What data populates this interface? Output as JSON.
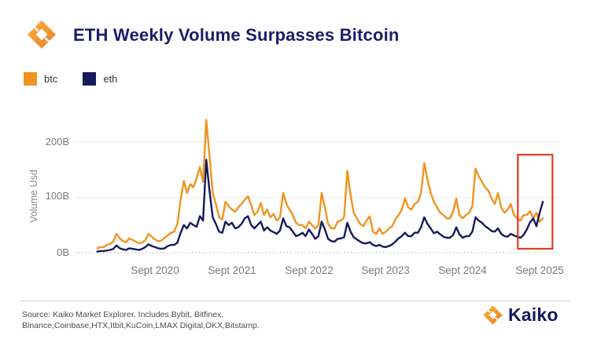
{
  "header": {
    "title": "ETH Weekly Volume Surpasses Bitcoin"
  },
  "legend": {
    "items": [
      {
        "label": "btc",
        "color": "#F0941F"
      },
      {
        "label": "eth",
        "color": "#141A5A"
      }
    ]
  },
  "chart_data": {
    "type": "line",
    "title": "ETH Weekly Volume Surpasses Bitcoin",
    "ylabel": "Volume Usd",
    "unit": "billions USD, weekly volume",
    "ylim": [
      0,
      250
    ],
    "yticklabels": [
      "200B",
      "100B",
      "0B"
    ],
    "ytick_values": [
      200,
      100,
      0
    ],
    "xticklabels": [
      "Sept 2020",
      "Sept 2021",
      "Sept 2022",
      "Sept 2023",
      "Sept 2024",
      "Sept 2025"
    ],
    "xtick_months_since_jan2020": [
      8,
      20,
      32,
      44,
      56,
      68
    ],
    "x_start_month_since_jan2020": -1,
    "x_step_months": 0.5,
    "grid": "horizontal, zero-line dotted",
    "legend_position": "top-left above plot",
    "annotation": {
      "type": "highlight-box",
      "color": "#E23B22",
      "note": "red box around mid-2025 where eth line crosses above btc",
      "x_start_month": 64.6,
      "x_end_month": 70.0,
      "y_min": 7,
      "y_max": 177
    },
    "series": [
      {
        "name": "btc",
        "color": "#F0941F",
        "values": [
          8,
          10,
          10,
          14,
          16,
          20,
          34,
          26,
          21,
          19,
          26,
          23,
          20,
          17,
          18,
          23,
          34,
          29,
          24,
          21,
          22,
          27,
          31,
          36,
          38,
          52,
          95,
          130,
          108,
          124,
          118,
          135,
          155,
          128,
          240,
          175,
          108,
          88,
          64,
          60,
          92,
          84,
          78,
          74,
          82,
          88,
          96,
          102,
          86,
          68,
          74,
          90,
          68,
          78,
          64,
          70,
          58,
          64,
          108,
          88,
          78,
          68,
          54,
          50,
          50,
          44,
          56,
          50,
          44,
          50,
          108,
          82,
          52,
          44,
          44,
          56,
          58,
          64,
          148,
          105,
          72,
          62,
          52,
          48,
          58,
          66,
          38,
          34,
          44,
          34,
          38,
          44,
          48,
          60,
          68,
          78,
          98,
          82,
          78,
          88,
          92,
          108,
          162,
          132,
          108,
          92,
          82,
          72,
          68,
          62,
          62,
          74,
          98,
          68,
          62,
          68,
          72,
          84,
          152,
          138,
          128,
          118,
          112,
          98,
          88,
          108,
          82,
          72,
          78,
          88,
          68,
          62,
          58,
          68,
          68,
          75,
          62,
          72,
          56,
          62
        ]
      },
      {
        "name": "eth",
        "color": "#141A5A",
        "values": [
          2,
          3,
          3,
          4,
          5,
          7,
          13,
          8,
          6,
          5,
          8,
          7,
          6,
          5,
          7,
          10,
          15,
          12,
          10,
          8,
          7,
          8,
          12,
          14,
          14,
          18,
          36,
          50,
          44,
          54,
          50,
          47,
          66,
          58,
          168,
          112,
          64,
          52,
          38,
          36,
          56,
          50,
          54,
          44,
          46,
          52,
          62,
          66,
          50,
          44,
          50,
          56,
          40,
          46,
          40,
          37,
          34,
          40,
          62,
          48,
          46,
          38,
          30,
          32,
          36,
          30,
          42,
          34,
          25,
          30,
          56,
          42,
          25,
          21,
          20,
          25,
          26,
          28,
          54,
          38,
          28,
          24,
          20,
          17,
          17,
          19,
          14,
          12,
          14,
          11,
          10,
          12,
          15,
          20,
          26,
          30,
          36,
          30,
          30,
          36,
          36,
          46,
          64,
          52,
          44,
          35,
          38,
          33,
          29,
          27,
          27,
          32,
          46,
          33,
          27,
          30,
          30,
          38,
          64,
          58,
          54,
          48,
          44,
          39,
          38,
          44,
          34,
          30,
          29,
          34,
          31,
          29,
          27,
          32,
          42,
          55,
          62,
          48,
          72,
          92
        ]
      }
    ]
  },
  "footer": {
    "source_line1": "Source: Kaiko Market Explorer. Includes Bybit, Bitfinex,",
    "source_line2": "Binance,Coinbase,HTX,Itbit,KuCoin,LMAX Digital,OKX,Bitstamp.",
    "brand": "Kaiko"
  }
}
